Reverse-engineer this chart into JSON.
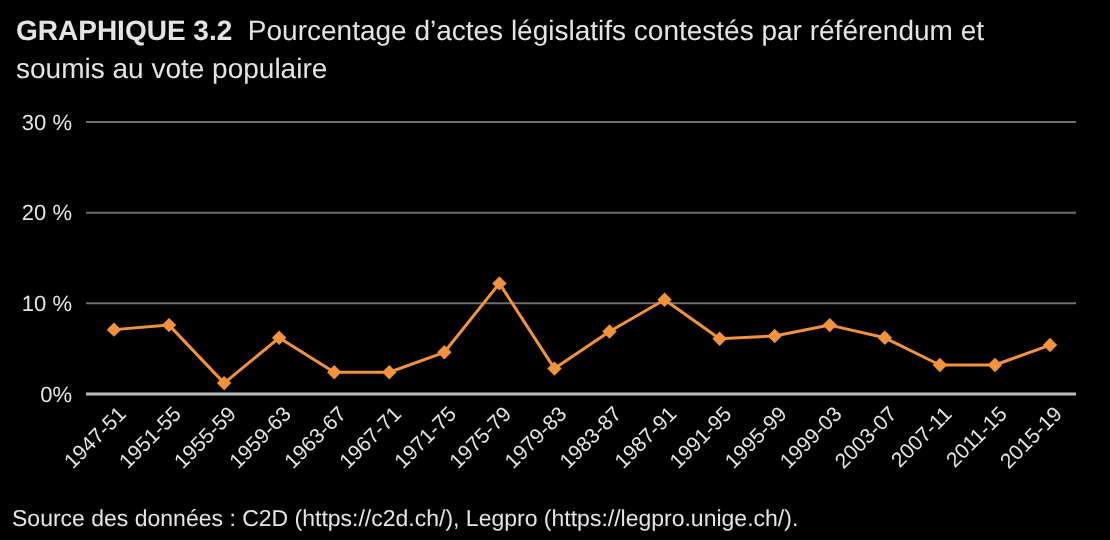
{
  "chart_data": {
    "type": "line",
    "title": "GRAPHIQUE 3.2",
    "subtitle": "Pourcentage d’actes législatifs contestés par référendum et soumis au vote populaire",
    "categories": [
      "1947-51",
      "1951-55",
      "1955-59",
      "1959-63",
      "1963-67",
      "1967-71",
      "1971-75",
      "1975-79",
      "1979-83",
      "1983-87",
      "1987-91",
      "1991-95",
      "1995-99",
      "1999-03",
      "2003-07",
      "2007-11",
      "2011-15",
      "2015-19"
    ],
    "series": [
      {
        "color": "#f0923e",
        "values": [
          7.1,
          7.6,
          1.2,
          6.2,
          2.4,
          2.4,
          4.6,
          12.2,
          2.8,
          6.9,
          10.4,
          6.1,
          6.4,
          7.6,
          6.2,
          3.2,
          3.2,
          5.4
        ]
      }
    ],
    "ylim": [
      0,
      30
    ],
    "yticks": [
      {
        "value": 0,
        "label": "0%"
      },
      {
        "value": 10,
        "label": "10 %"
      },
      {
        "value": 20,
        "label": "20 %"
      },
      {
        "value": 30,
        "label": "30 %"
      }
    ],
    "grid": "y",
    "marker": "diamond",
    "line_style": "solid",
    "annotations": [
      "Source des données : C2D (https://c2d.ch/), Legpro (https://legpro.unige.ch/)."
    ]
  }
}
